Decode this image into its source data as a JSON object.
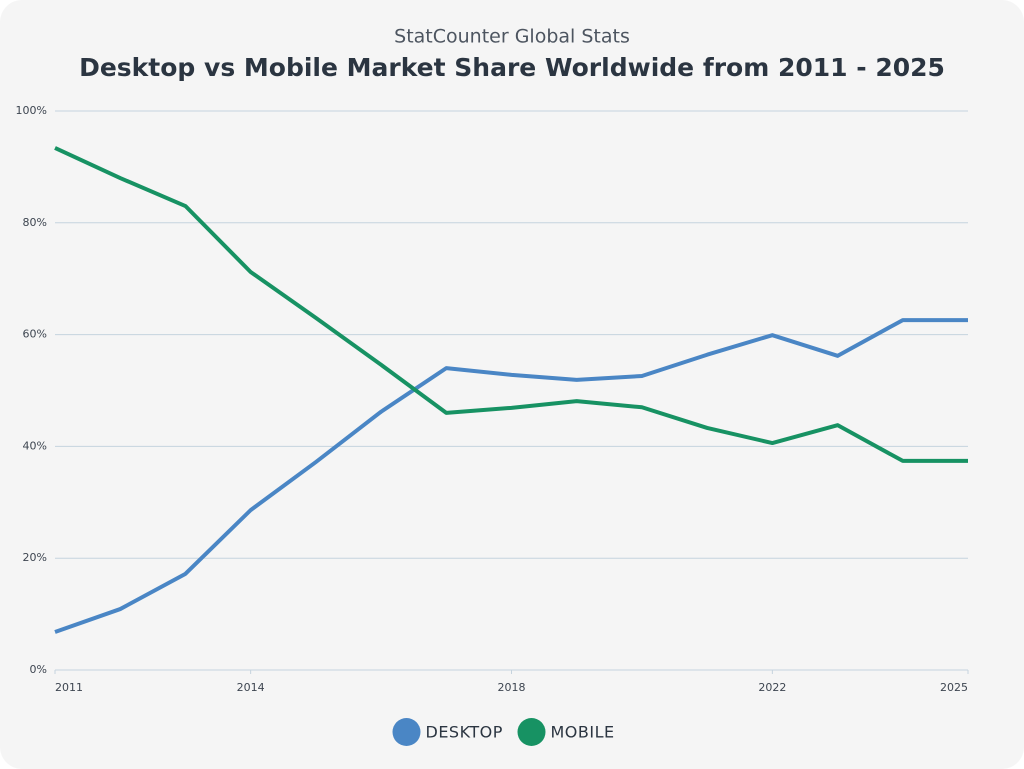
{
  "chart_data": {
    "type": "line",
    "subtitle": "StatCounter Global Stats",
    "title": "Desktop vs Mobile Market Share Worldwide from 2011 - 2025",
    "x": [
      2011,
      2012,
      2013,
      2014,
      2015,
      2016,
      2017,
      2018,
      2019,
      2020,
      2021,
      2022,
      2023,
      2024,
      2025
    ],
    "xlim": [
      2011,
      2025
    ],
    "xticks": [
      2011,
      2014,
      2018,
      2022,
      2025
    ],
    "ylim": [
      0,
      100
    ],
    "yticks": [
      {
        "value": 0,
        "label": "0%"
      },
      {
        "value": 20,
        "label": "20%"
      },
      {
        "value": 40,
        "label": "40%"
      },
      {
        "value": 60,
        "label": "60%"
      },
      {
        "value": 80,
        "label": "80%"
      },
      {
        "value": 100,
        "label": "100%"
      }
    ],
    "grid": true,
    "legend": "bottom",
    "series": [
      {
        "name": "DESKTOP",
        "color": "#4a86c5",
        "values": [
          6.8,
          10.9,
          17.2,
          28.6,
          37.2,
          46.2,
          54.0,
          52.8,
          51.9,
          52.6,
          56.4,
          59.9,
          56.2,
          62.6,
          62.6
        ]
      },
      {
        "name": "MOBILE",
        "color": "#179263",
        "values": [
          93.4,
          88.0,
          83.0,
          71.2,
          63.0,
          54.6,
          46.0,
          46.9,
          48.1,
          47.0,
          43.3,
          40.6,
          43.8,
          37.4,
          37.4
        ]
      }
    ]
  }
}
